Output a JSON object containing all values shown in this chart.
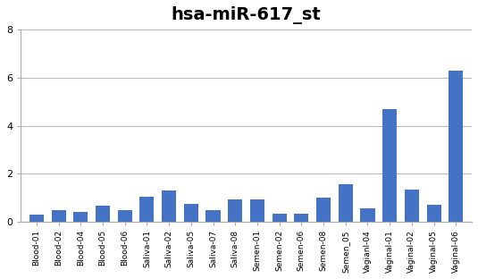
{
  "title": "hsa-miR-617_st",
  "categories": [
    "Blood-01",
    "Blood-02",
    "Blood-04",
    "Blood-05",
    "Blood-06",
    "Saliva-01",
    "Saliva-02",
    "Saliva-05",
    "Saliva-07",
    "Saliva-08",
    "Semen-01",
    "Semen-02",
    "Semen-06",
    "Semen-08",
    "Semen_05",
    "VagianI-04",
    "Vaginal-01",
    "Vaginal-02",
    "Vaginal-05",
    "Vaginal-06"
  ],
  "values": [
    0.3,
    0.48,
    0.42,
    0.68,
    0.48,
    1.05,
    1.3,
    0.75,
    0.5,
    0.92,
    0.92,
    0.35,
    0.35,
    1.02,
    1.55,
    0.55,
    4.7,
    1.35,
    0.72,
    6.3
  ],
  "bar_color": "#4472C4",
  "ylim": [
    0,
    8
  ],
  "yticks": [
    0,
    2,
    4,
    6,
    8
  ],
  "title_fontsize": 14,
  "tick_fontsize": 6.5,
  "ytick_fontsize": 8.0,
  "background_color": "#ffffff",
  "grid_color": "#bbbbbb",
  "spine_color": "#aaaaaa"
}
